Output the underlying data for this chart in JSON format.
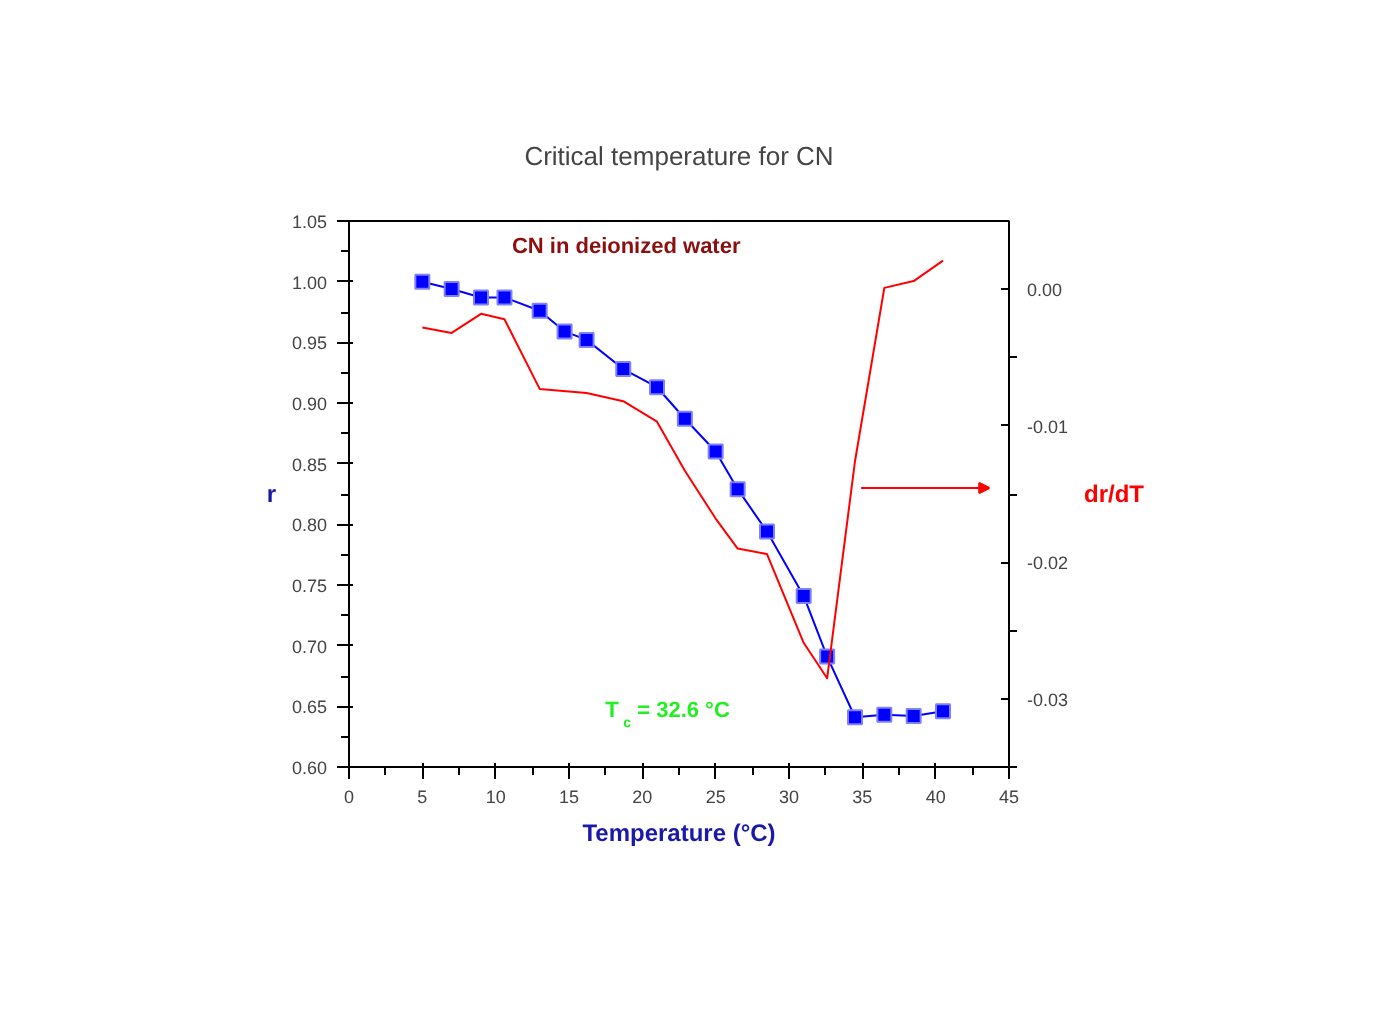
{
  "chart_data": {
    "type": "line",
    "title": "Critical temperature for CN",
    "xlabel": "Temperature (°C)",
    "ylabel": "r",
    "y2label": "dr/dT",
    "annotations": [
      "CN in deionized water",
      "T$_{c}$ = 32.6 °C"
    ],
    "series": [
      {
        "color": "#0000ff",
        "marker": "square",
        "x": [
          5,
          7,
          9,
          10.6,
          13,
          14.7,
          16.2,
          18.7,
          21,
          22.9,
          25,
          26.5,
          28.5,
          31,
          32.6,
          34.5,
          36.5,
          38.5,
          40.5
        ],
        "values": [
          1.0,
          0.994,
          0.987,
          0.987,
          0.976,
          0.959,
          0.952,
          0.928,
          0.913,
          0.887,
          0.86,
          0.829,
          0.794,
          0.741,
          0.691,
          0.641,
          0.643,
          0.642,
          0.646
        ]
      },
      {
        "color": "#ff0000",
        "axis": "y2",
        "x": [
          5,
          7,
          9,
          10.6,
          13,
          16.2,
          18.7,
          21,
          22.9,
          25,
          26.5,
          28.5,
          31,
          32.6,
          34.5,
          36.5,
          38.5,
          40.5
        ],
        "values": [
          -0.0028,
          -0.0032,
          -0.0018,
          -0.0022,
          -0.0073,
          -0.0076,
          -0.0082,
          -0.0097,
          -0.0133,
          -0.0168,
          -0.019,
          -0.0194,
          -0.0259,
          -0.0285,
          -0.0126,
          0.0001,
          0.0006,
          0.0021
        ]
      }
    ],
    "xlim": [
      0,
      45
    ],
    "xticks": [
      0,
      5,
      10,
      15,
      20,
      25,
      30,
      35,
      40,
      45
    ],
    "ylim": [
      0.6,
      1.05
    ],
    "yticks": [
      {
        "value": 0.6,
        "label": "0.60"
      },
      {
        "value": 0.65,
        "label": "0.65"
      },
      {
        "value": 0.7,
        "label": "0.70"
      },
      {
        "value": 0.75,
        "label": "0.75"
      },
      {
        "value": 0.8,
        "label": "0.80"
      },
      {
        "value": 0.85,
        "label": "0.85"
      },
      {
        "value": 0.9,
        "label": "0.90"
      },
      {
        "value": 0.95,
        "label": "0.95"
      },
      {
        "value": 1.0,
        "label": "1.00"
      },
      {
        "value": 1.05,
        "label": "1.05"
      }
    ],
    "y2lim": [
      -0.035,
      0.005
    ],
    "y2ticks": [
      {
        "value": 0,
        "label": "0.00"
      },
      {
        "value": -0.01,
        "label": "-0.01"
      },
      {
        "value": -0.02,
        "label": "-0.02"
      },
      {
        "value": -0.03,
        "label": "-0.03"
      }
    ],
    "grid": false
  }
}
